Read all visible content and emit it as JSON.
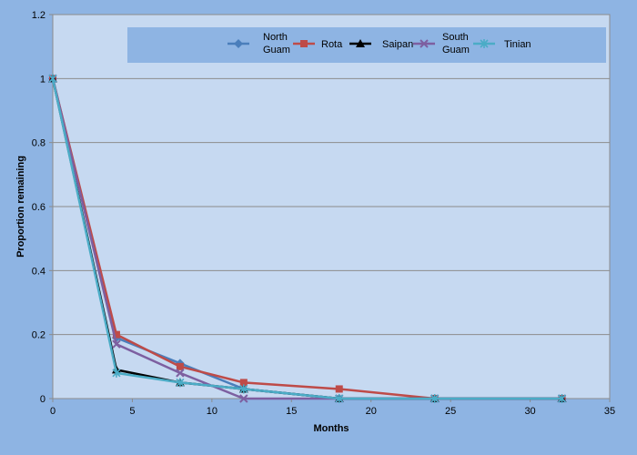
{
  "chart_data": {
    "type": "line",
    "title": "",
    "xlabel": "Months",
    "ylabel": "Proportion remaining",
    "xlim": [
      0,
      35
    ],
    "ylim": [
      0,
      1.2
    ],
    "xticks": [
      0,
      5,
      10,
      15,
      20,
      25,
      30,
      35
    ],
    "yticks": [
      0,
      0.2,
      0.4,
      0.6,
      0.8,
      1,
      1.2
    ],
    "grid": true,
    "legend_position": "top",
    "series": [
      {
        "name": "North Guam",
        "color": "#4a7ebb",
        "marker": "diamond",
        "points": [
          [
            0,
            1
          ],
          [
            4,
            0.19
          ],
          [
            8,
            0.11
          ],
          [
            12,
            0.03
          ],
          [
            18,
            0
          ],
          [
            24,
            0
          ],
          [
            32,
            0
          ]
        ]
      },
      {
        "name": "Rota",
        "color": "#be4b48",
        "marker": "square",
        "points": [
          [
            0,
            1
          ],
          [
            4,
            0.2
          ],
          [
            8,
            0.1
          ],
          [
            12,
            0.05
          ],
          [
            18,
            0.03
          ],
          [
            24,
            0
          ],
          [
            32,
            0
          ]
        ]
      },
      {
        "name": "Saipan",
        "color": "#000000",
        "marker": "triangle",
        "points": [
          [
            0,
            1
          ],
          [
            4,
            0.09
          ],
          [
            8,
            0.05
          ],
          [
            12,
            0.03
          ],
          [
            18,
            0
          ],
          [
            24,
            0
          ],
          [
            32,
            0
          ]
        ]
      },
      {
        "name": "South Guam",
        "color": "#7d5fa0",
        "marker": "x",
        "points": [
          [
            0,
            1
          ],
          [
            4,
            0.17
          ],
          [
            8,
            0.08
          ],
          [
            12,
            0
          ],
          [
            18,
            0
          ],
          [
            24,
            0
          ],
          [
            32,
            0
          ]
        ]
      },
      {
        "name": "Tinian",
        "color": "#4bacc6",
        "marker": "star",
        "points": [
          [
            0,
            1
          ],
          [
            4,
            0.08
          ],
          [
            8,
            0.05
          ],
          [
            12,
            0.03
          ],
          [
            18,
            0
          ],
          [
            24,
            0
          ],
          [
            32,
            0
          ]
        ]
      }
    ]
  }
}
